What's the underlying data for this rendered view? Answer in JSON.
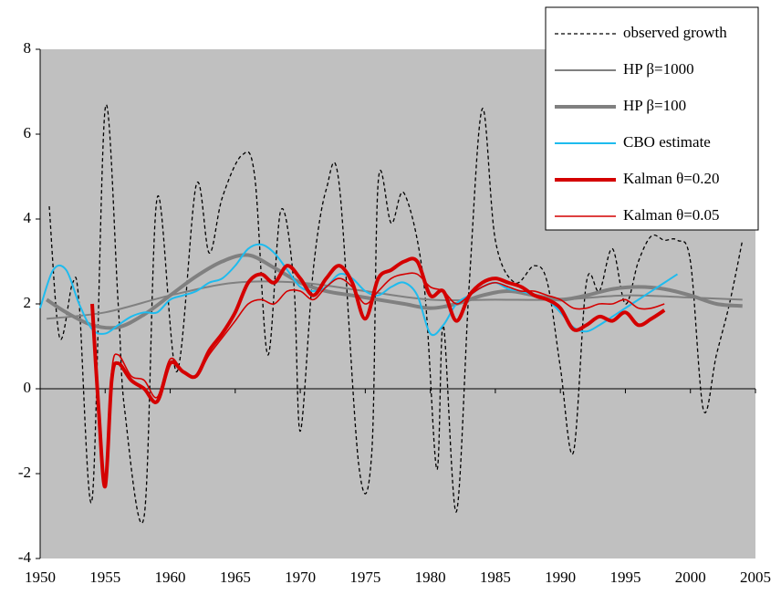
{
  "chart_data": {
    "type": "line",
    "xlim": [
      1950,
      2005
    ],
    "xticks": [
      1950,
      1955,
      1960,
      1965,
      1970,
      1975,
      1980,
      1985,
      1990,
      1995,
      2000,
      2005
    ],
    "ylim": [
      -4,
      8
    ],
    "yticks": [
      -4,
      -2,
      0,
      2,
      4,
      6,
      8
    ],
    "grid": false,
    "legend": "upper right",
    "background": "#c0c0c0",
    "series": [
      {
        "name": "observed growth",
        "color": "#000000",
        "width": 1.3,
        "dash": true,
        "x": [
          1950.7,
          1951.5,
          1952.5,
          1953,
          1954,
          1955,
          1956,
          1956.5,
          1958,
          1959,
          1960.5,
          1962,
          1963,
          1964,
          1965.5,
          1966.5,
          1967.5,
          1968.5,
          1969.5,
          1970,
          1971,
          1972,
          1973,
          1974.5,
          1975.5,
          1976,
          1977,
          1978,
          1979.5,
          1980.5,
          1981,
          1982,
          1983,
          1984,
          1985,
          1986.5,
          1988,
          1989,
          1990,
          1991,
          1992,
          1993,
          1994,
          1995,
          1996,
          1997,
          1998,
          1999,
          2000,
          2001,
          2002,
          2003,
          2004
        ],
        "values": [
          4.3,
          1.2,
          2.5,
          2.0,
          -2.6,
          6.6,
          2.0,
          -0.5,
          -3.0,
          4.5,
          0.4,
          4.8,
          3.2,
          4.5,
          5.5,
          5.0,
          0.8,
          4.2,
          2.5,
          -1.0,
          2.8,
          4.7,
          4.8,
          -1.8,
          -1.5,
          4.9,
          3.9,
          4.6,
          2.5,
          -1.9,
          1.5,
          -2.9,
          2.5,
          6.6,
          3.5,
          2.5,
          2.9,
          2.5,
          0.5,
          -1.5,
          2.5,
          2.3,
          3.3,
          2.0,
          3.0,
          3.6,
          3.5,
          3.5,
          3.0,
          -0.5,
          0.8,
          2.0,
          3.5
        ]
      },
      {
        "name": "HP β=1000",
        "color": "#808080",
        "width": 2,
        "x": [
          1950.5,
          1955,
          1960,
          1965,
          1970,
          1975,
          1980,
          1985,
          1990,
          1995,
          2000,
          2004
        ],
        "values": [
          1.65,
          1.8,
          2.2,
          2.5,
          2.5,
          2.3,
          2.1,
          2.1,
          2.1,
          2.2,
          2.15,
          2.1
        ]
      },
      {
        "name": "HP β=100",
        "color": "#808080",
        "width": 4,
        "x": [
          1950.5,
          1952,
          1954,
          1956,
          1958,
          1960,
          1962,
          1964,
          1966,
          1968,
          1970,
          1972,
          1974,
          1976,
          1978,
          1980,
          1982,
          1984,
          1986,
          1988,
          1990,
          1992,
          1994,
          1996,
          1998,
          2000,
          2002,
          2004
        ],
        "values": [
          2.1,
          1.8,
          1.5,
          1.45,
          1.75,
          2.2,
          2.65,
          3.0,
          3.15,
          2.85,
          2.5,
          2.3,
          2.2,
          2.1,
          2.0,
          1.9,
          2.0,
          2.2,
          2.3,
          2.2,
          2.1,
          2.2,
          2.35,
          2.4,
          2.35,
          2.2,
          2.0,
          1.95
        ]
      },
      {
        "name": "CBO estimate",
        "color": "#1ebbee",
        "width": 2,
        "x": [
          1950,
          1951,
          1952,
          1953,
          1954,
          1955,
          1956,
          1957,
          1958,
          1959,
          1960,
          1961,
          1962,
          1963,
          1964,
          1965,
          1966,
          1967,
          1968,
          1969,
          1970,
          1971,
          1972,
          1973,
          1974,
          1975,
          1976,
          1977,
          1978,
          1979,
          1980,
          1981,
          1982,
          1983,
          1984,
          1985,
          1986,
          1987,
          1988,
          1989,
          1990,
          1991,
          1992,
          1993,
          1994,
          1995,
          1996,
          1997,
          1998,
          1999
        ],
        "values": [
          1.9,
          2.8,
          2.8,
          2.0,
          1.4,
          1.3,
          1.5,
          1.7,
          1.8,
          1.8,
          2.1,
          2.2,
          2.3,
          2.5,
          2.6,
          2.9,
          3.3,
          3.4,
          3.2,
          2.8,
          2.4,
          2.3,
          2.4,
          2.7,
          2.6,
          2.3,
          2.2,
          2.4,
          2.5,
          2.2,
          1.3,
          1.5,
          2.0,
          2.2,
          2.4,
          2.5,
          2.35,
          2.3,
          2.2,
          2.1,
          1.8,
          1.45,
          1.35,
          1.5,
          1.7,
          1.9,
          2.1,
          2.3,
          2.5,
          2.7
        ]
      },
      {
        "name": "Kalman θ=0.20",
        "color": "#d40000",
        "width": 4,
        "x": [
          1954,
          1954.5,
          1955,
          1955.5,
          1956,
          1957,
          1958,
          1959,
          1960,
          1961,
          1962,
          1963,
          1964,
          1965,
          1966,
          1967,
          1968,
          1969,
          1970,
          1971,
          1972,
          1973,
          1974,
          1975,
          1976,
          1977,
          1978,
          1979,
          1980,
          1981,
          1982,
          1983,
          1984,
          1985,
          1986,
          1987,
          1988,
          1989,
          1990,
          1991,
          1992,
          1993,
          1994,
          1995,
          1996,
          1997,
          1998
        ],
        "values": [
          2.0,
          -0.5,
          -2.3,
          0.2,
          0.6,
          0.2,
          0.0,
          -0.3,
          0.6,
          0.4,
          0.3,
          0.9,
          1.3,
          1.8,
          2.5,
          2.7,
          2.5,
          2.9,
          2.6,
          2.2,
          2.6,
          2.9,
          2.5,
          1.65,
          2.6,
          2.8,
          3.0,
          3.0,
          2.2,
          2.3,
          1.6,
          2.2,
          2.5,
          2.6,
          2.5,
          2.4,
          2.2,
          2.1,
          1.9,
          1.4,
          1.5,
          1.7,
          1.6,
          1.8,
          1.5,
          1.65,
          1.85
        ]
      },
      {
        "name": "Kalman θ=0.05",
        "color": "#d40000",
        "width": 1.6,
        "x": [
          1954,
          1954.5,
          1955,
          1955.5,
          1956,
          1957,
          1958,
          1959,
          1960,
          1961,
          1962,
          1963,
          1964,
          1965,
          1966,
          1967,
          1968,
          1969,
          1970,
          1971,
          1972,
          1973,
          1974,
          1975,
          1976,
          1977,
          1978,
          1979,
          1980,
          1981,
          1982,
          1983,
          1984,
          1985,
          1986,
          1987,
          1988,
          1989,
          1990,
          1991,
          1992,
          1993,
          1994,
          1995,
          1996,
          1997,
          1998
        ],
        "values": [
          2.0,
          -0.3,
          -2.2,
          0.4,
          0.8,
          0.3,
          0.2,
          -0.2,
          0.7,
          0.4,
          0.3,
          0.8,
          1.2,
          1.6,
          2.0,
          2.1,
          2.0,
          2.3,
          2.3,
          2.1,
          2.4,
          2.6,
          2.4,
          2.0,
          2.3,
          2.6,
          2.7,
          2.7,
          2.4,
          2.3,
          2.0,
          2.2,
          2.4,
          2.5,
          2.4,
          2.3,
          2.3,
          2.2,
          2.1,
          1.9,
          1.9,
          2.0,
          2.0,
          2.1,
          1.9,
          1.9,
          2.0
        ]
      }
    ]
  }
}
